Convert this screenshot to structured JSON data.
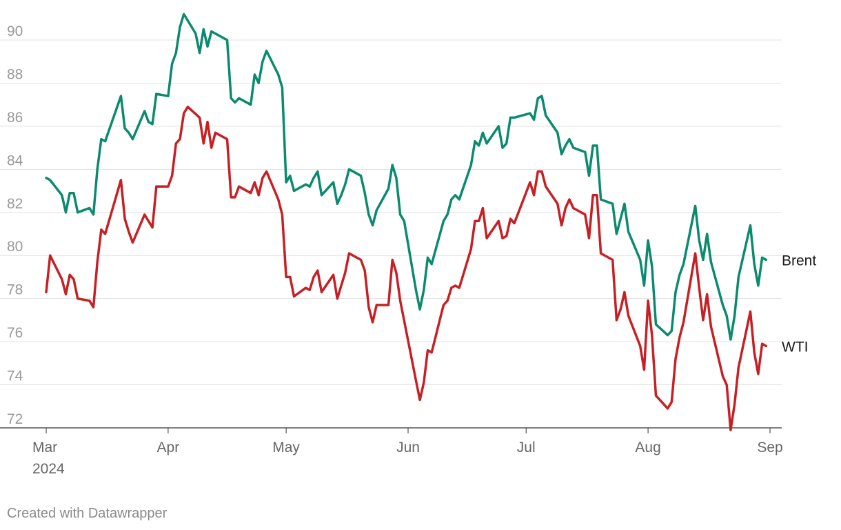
{
  "chart_data": {
    "type": "line",
    "title": "",
    "xlabel": "",
    "ylabel": "",
    "ylim": [
      72,
      91
    ],
    "grid": true,
    "legend": "direct labels at line ends (right)",
    "y_ticks": [
      "72",
      "74",
      "76",
      "78",
      "80",
      "82",
      "84",
      "86",
      "88",
      "90"
    ],
    "x_ticks": [
      {
        "date": "2024-03-01",
        "label": "Mar",
        "sublabel": "2024"
      },
      {
        "date": "2024-04-01",
        "label": "Apr",
        "sublabel": ""
      },
      {
        "date": "2024-05-01",
        "label": "May",
        "sublabel": ""
      },
      {
        "date": "2024-06-01",
        "label": "Jun",
        "sublabel": ""
      },
      {
        "date": "2024-07-01",
        "label": "Jul",
        "sublabel": ""
      },
      {
        "date": "2024-08-01",
        "label": "Aug",
        "sublabel": ""
      },
      {
        "date": "2024-09-01",
        "label": "Sep",
        "sublabel": ""
      }
    ],
    "xlim": [
      "2024-03-01",
      "2024-09-01"
    ],
    "series": [
      {
        "name": "Brent",
        "color": "#0b8a6e",
        "points": [
          [
            "2024-03-01",
            83.6
          ],
          [
            "2024-03-02",
            83.5
          ],
          [
            "2024-03-05",
            82.8
          ],
          [
            "2024-03-06",
            82.0
          ],
          [
            "2024-03-07",
            82.9
          ],
          [
            "2024-03-08",
            82.9
          ],
          [
            "2024-03-09",
            82.0
          ],
          [
            "2024-03-12",
            82.2
          ],
          [
            "2024-03-13",
            81.9
          ],
          [
            "2024-03-14",
            84.0
          ],
          [
            "2024-03-15",
            85.4
          ],
          [
            "2024-03-16",
            85.3
          ],
          [
            "2024-03-20",
            87.4
          ],
          [
            "2024-03-21",
            85.9
          ],
          [
            "2024-03-22",
            85.7
          ],
          [
            "2024-03-23",
            85.4
          ],
          [
            "2024-03-26",
            86.7
          ],
          [
            "2024-03-27",
            86.2
          ],
          [
            "2024-03-28",
            86.1
          ],
          [
            "2024-03-29",
            87.5
          ],
          [
            "2024-04-01",
            87.4
          ],
          [
            "2024-04-02",
            88.9
          ],
          [
            "2024-04-03",
            89.4
          ],
          [
            "2024-04-04",
            90.6
          ],
          [
            "2024-04-05",
            91.2
          ],
          [
            "2024-04-08",
            90.3
          ],
          [
            "2024-04-09",
            89.4
          ],
          [
            "2024-04-10",
            90.5
          ],
          [
            "2024-04-11",
            89.7
          ],
          [
            "2024-04-12",
            90.4
          ],
          [
            "2024-04-15",
            90.1
          ],
          [
            "2024-04-16",
            90.0
          ],
          [
            "2024-04-17",
            87.3
          ],
          [
            "2024-04-18",
            87.1
          ],
          [
            "2024-04-19",
            87.3
          ],
          [
            "2024-04-22",
            87.0
          ],
          [
            "2024-04-23",
            88.4
          ],
          [
            "2024-04-24",
            88.0
          ],
          [
            "2024-04-25",
            89.0
          ],
          [
            "2024-04-26",
            89.5
          ],
          [
            "2024-04-29",
            88.4
          ],
          [
            "2024-04-30",
            87.8
          ],
          [
            "2024-05-01",
            83.4
          ],
          [
            "2024-05-02",
            83.7
          ],
          [
            "2024-05-03",
            83.0
          ],
          [
            "2024-05-06",
            83.3
          ],
          [
            "2024-05-07",
            83.2
          ],
          [
            "2024-05-08",
            83.6
          ],
          [
            "2024-05-09",
            83.9
          ],
          [
            "2024-05-10",
            82.8
          ],
          [
            "2024-05-13",
            83.4
          ],
          [
            "2024-05-14",
            82.4
          ],
          [
            "2024-05-15",
            82.8
          ],
          [
            "2024-05-16",
            83.3
          ],
          [
            "2024-05-17",
            84.0
          ],
          [
            "2024-05-20",
            83.7
          ],
          [
            "2024-05-21",
            82.9
          ],
          [
            "2024-05-22",
            81.9
          ],
          [
            "2024-05-23",
            81.4
          ],
          [
            "2024-05-24",
            82.1
          ],
          [
            "2024-05-27",
            83.1
          ],
          [
            "2024-05-28",
            84.2
          ],
          [
            "2024-05-29",
            83.6
          ],
          [
            "2024-05-30",
            81.9
          ],
          [
            "2024-05-31",
            81.6
          ],
          [
            "2024-06-03",
            78.4
          ],
          [
            "2024-06-04",
            77.5
          ],
          [
            "2024-06-05",
            78.4
          ],
          [
            "2024-06-06",
            79.9
          ],
          [
            "2024-06-07",
            79.6
          ],
          [
            "2024-06-10",
            81.6
          ],
          [
            "2024-06-11",
            81.9
          ],
          [
            "2024-06-12",
            82.6
          ],
          [
            "2024-06-13",
            82.8
          ],
          [
            "2024-06-14",
            82.6
          ],
          [
            "2024-06-17",
            84.2
          ],
          [
            "2024-06-18",
            85.3
          ],
          [
            "2024-06-19",
            85.1
          ],
          [
            "2024-06-20",
            85.7
          ],
          [
            "2024-06-21",
            85.2
          ],
          [
            "2024-06-24",
            86.0
          ],
          [
            "2024-06-25",
            85.0
          ],
          [
            "2024-06-26",
            85.2
          ],
          [
            "2024-06-27",
            86.4
          ],
          [
            "2024-06-28",
            86.4
          ],
          [
            "2024-07-02",
            86.6
          ],
          [
            "2024-07-03",
            86.3
          ],
          [
            "2024-07-04",
            87.3
          ],
          [
            "2024-07-05",
            87.4
          ],
          [
            "2024-07-06",
            86.5
          ],
          [
            "2024-07-09",
            85.7
          ],
          [
            "2024-07-10",
            84.7
          ],
          [
            "2024-07-11",
            85.1
          ],
          [
            "2024-07-12",
            85.4
          ],
          [
            "2024-07-13",
            85.0
          ],
          [
            "2024-07-16",
            84.8
          ],
          [
            "2024-07-17",
            83.7
          ],
          [
            "2024-07-18",
            85.1
          ],
          [
            "2024-07-19",
            85.1
          ],
          [
            "2024-07-20",
            82.6
          ],
          [
            "2024-07-23",
            82.4
          ],
          [
            "2024-07-24",
            81.0
          ],
          [
            "2024-07-25",
            81.7
          ],
          [
            "2024-07-26",
            82.4
          ],
          [
            "2024-07-27",
            81.1
          ],
          [
            "2024-07-30",
            79.8
          ],
          [
            "2024-07-31",
            78.6
          ],
          [
            "2024-08-01",
            80.7
          ],
          [
            "2024-08-02",
            79.5
          ],
          [
            "2024-08-03",
            76.8
          ],
          [
            "2024-08-06",
            76.3
          ],
          [
            "2024-08-07",
            76.5
          ],
          [
            "2024-08-08",
            78.3
          ],
          [
            "2024-08-09",
            79.1
          ],
          [
            "2024-08-10",
            79.6
          ],
          [
            "2024-08-13",
            82.3
          ],
          [
            "2024-08-14",
            80.7
          ],
          [
            "2024-08-15",
            79.8
          ],
          [
            "2024-08-16",
            81.0
          ],
          [
            "2024-08-17",
            79.7
          ],
          [
            "2024-08-20",
            77.7
          ],
          [
            "2024-08-21",
            77.2
          ],
          [
            "2024-08-22",
            76.1
          ],
          [
            "2024-08-23",
            77.2
          ],
          [
            "2024-08-24",
            79.0
          ],
          [
            "2024-08-27",
            81.4
          ],
          [
            "2024-08-28",
            79.6
          ],
          [
            "2024-08-29",
            78.6
          ],
          [
            "2024-08-30",
            79.9
          ],
          [
            "2024-08-31",
            79.8
          ]
        ]
      },
      {
        "name": "WTI",
        "color": "#c62024",
        "points": [
          [
            "2024-03-01",
            78.3
          ],
          [
            "2024-03-02",
            80.0
          ],
          [
            "2024-03-05",
            78.9
          ],
          [
            "2024-03-06",
            78.2
          ],
          [
            "2024-03-07",
            79.1
          ],
          [
            "2024-03-08",
            78.9
          ],
          [
            "2024-03-09",
            78.0
          ],
          [
            "2024-03-12",
            77.9
          ],
          [
            "2024-03-13",
            77.6
          ],
          [
            "2024-03-14",
            79.7
          ],
          [
            "2024-03-15",
            81.2
          ],
          [
            "2024-03-16",
            81.0
          ],
          [
            "2024-03-20",
            83.5
          ],
          [
            "2024-03-21",
            81.7
          ],
          [
            "2024-03-22",
            81.1
          ],
          [
            "2024-03-23",
            80.6
          ],
          [
            "2024-03-26",
            81.9
          ],
          [
            "2024-03-27",
            81.6
          ],
          [
            "2024-03-28",
            81.3
          ],
          [
            "2024-03-29",
            83.2
          ],
          [
            "2024-04-01",
            83.2
          ],
          [
            "2024-04-02",
            83.7
          ],
          [
            "2024-04-03",
            85.2
          ],
          [
            "2024-04-04",
            85.4
          ],
          [
            "2024-04-05",
            86.6
          ],
          [
            "2024-04-06",
            86.9
          ],
          [
            "2024-04-09",
            86.4
          ],
          [
            "2024-04-10",
            85.2
          ],
          [
            "2024-04-11",
            86.2
          ],
          [
            "2024-04-12",
            85.0
          ],
          [
            "2024-04-13",
            85.7
          ],
          [
            "2024-04-16",
            85.4
          ],
          [
            "2024-04-17",
            82.7
          ],
          [
            "2024-04-18",
            82.7
          ],
          [
            "2024-04-19",
            83.2
          ],
          [
            "2024-04-22",
            82.9
          ],
          [
            "2024-04-23",
            83.4
          ],
          [
            "2024-04-24",
            82.8
          ],
          [
            "2024-04-25",
            83.6
          ],
          [
            "2024-04-26",
            83.9
          ],
          [
            "2024-04-29",
            82.6
          ],
          [
            "2024-04-30",
            81.9
          ],
          [
            "2024-05-01",
            79.0
          ],
          [
            "2024-05-02",
            79.0
          ],
          [
            "2024-05-03",
            78.1
          ],
          [
            "2024-05-06",
            78.5
          ],
          [
            "2024-05-07",
            78.4
          ],
          [
            "2024-05-08",
            79.0
          ],
          [
            "2024-05-09",
            79.3
          ],
          [
            "2024-05-10",
            78.3
          ],
          [
            "2024-05-13",
            79.1
          ],
          [
            "2024-05-14",
            78.0
          ],
          [
            "2024-05-15",
            78.6
          ],
          [
            "2024-05-16",
            79.2
          ],
          [
            "2024-05-17",
            80.1
          ],
          [
            "2024-05-20",
            79.8
          ],
          [
            "2024-05-21",
            79.3
          ],
          [
            "2024-05-22",
            77.6
          ],
          [
            "2024-05-23",
            76.9
          ],
          [
            "2024-05-24",
            77.7
          ],
          [
            "2024-05-27",
            77.7
          ],
          [
            "2024-05-28",
            79.8
          ],
          [
            "2024-05-29",
            79.2
          ],
          [
            "2024-05-30",
            77.9
          ],
          [
            "2024-06-03",
            74.2
          ],
          [
            "2024-06-04",
            73.3
          ],
          [
            "2024-06-05",
            74.1
          ],
          [
            "2024-06-06",
            75.6
          ],
          [
            "2024-06-07",
            75.5
          ],
          [
            "2024-06-10",
            77.7
          ],
          [
            "2024-06-11",
            77.9
          ],
          [
            "2024-06-12",
            78.5
          ],
          [
            "2024-06-13",
            78.6
          ],
          [
            "2024-06-14",
            78.5
          ],
          [
            "2024-06-17",
            80.3
          ],
          [
            "2024-06-18",
            81.6
          ],
          [
            "2024-06-19",
            81.6
          ],
          [
            "2024-06-20",
            82.2
          ],
          [
            "2024-06-21",
            80.8
          ],
          [
            "2024-06-24",
            81.6
          ],
          [
            "2024-06-25",
            80.8
          ],
          [
            "2024-06-26",
            80.9
          ],
          [
            "2024-06-27",
            81.7
          ],
          [
            "2024-06-28",
            81.5
          ],
          [
            "2024-07-02",
            83.4
          ],
          [
            "2024-07-03",
            82.8
          ],
          [
            "2024-07-04",
            83.9
          ],
          [
            "2024-07-05",
            83.9
          ],
          [
            "2024-07-06",
            83.2
          ],
          [
            "2024-07-09",
            82.4
          ],
          [
            "2024-07-10",
            81.4
          ],
          [
            "2024-07-11",
            82.2
          ],
          [
            "2024-07-12",
            82.6
          ],
          [
            "2024-07-13",
            82.2
          ],
          [
            "2024-07-16",
            81.9
          ],
          [
            "2024-07-17",
            80.8
          ],
          [
            "2024-07-18",
            82.8
          ],
          [
            "2024-07-19",
            82.8
          ],
          [
            "2024-07-20",
            80.1
          ],
          [
            "2024-07-23",
            79.8
          ],
          [
            "2024-07-24",
            77.0
          ],
          [
            "2024-07-25",
            77.5
          ],
          [
            "2024-07-26",
            78.3
          ],
          [
            "2024-07-27",
            77.2
          ],
          [
            "2024-07-30",
            75.8
          ],
          [
            "2024-07-31",
            74.7
          ],
          [
            "2024-08-01",
            77.9
          ],
          [
            "2024-08-02",
            76.3
          ],
          [
            "2024-08-03",
            73.5
          ],
          [
            "2024-08-06",
            72.9
          ],
          [
            "2024-08-07",
            73.2
          ],
          [
            "2024-08-08",
            75.2
          ],
          [
            "2024-08-09",
            76.2
          ],
          [
            "2024-08-10",
            76.9
          ],
          [
            "2024-08-13",
            80.1
          ],
          [
            "2024-08-14",
            78.5
          ],
          [
            "2024-08-15",
            77.0
          ],
          [
            "2024-08-16",
            78.2
          ],
          [
            "2024-08-17",
            76.7
          ],
          [
            "2024-08-20",
            74.4
          ],
          [
            "2024-08-21",
            74.0
          ],
          [
            "2024-08-22",
            71.9
          ],
          [
            "2024-08-23",
            73.1
          ],
          [
            "2024-08-24",
            74.8
          ],
          [
            "2024-08-27",
            77.4
          ],
          [
            "2024-08-28",
            75.5
          ],
          [
            "2024-08-29",
            74.5
          ],
          [
            "2024-08-30",
            75.9
          ],
          [
            "2024-08-31",
            75.8
          ]
        ]
      }
    ]
  },
  "footer": {
    "credit": "Created with Datawrapper"
  }
}
